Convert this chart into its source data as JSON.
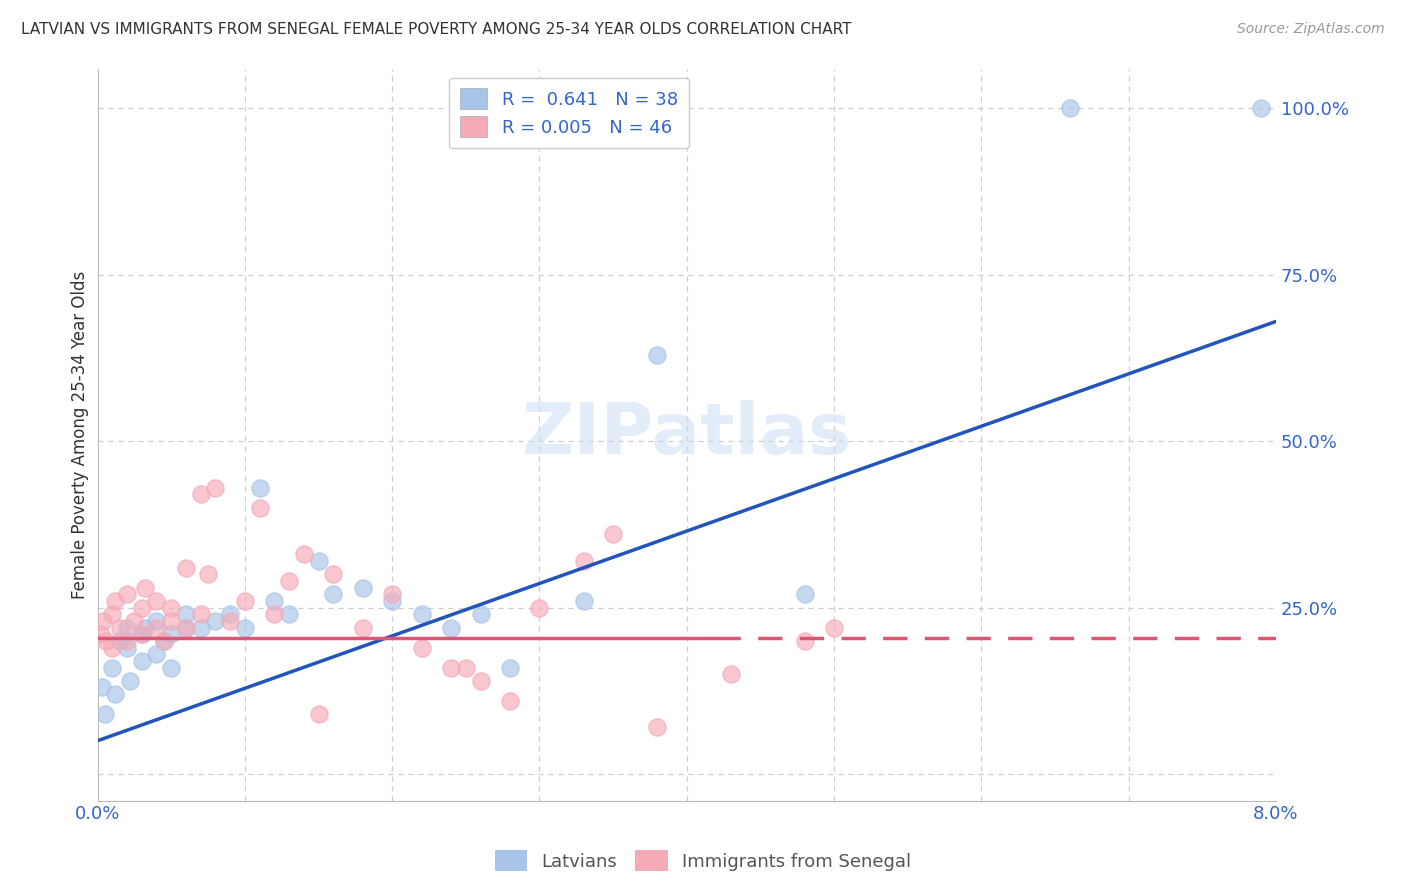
{
  "title": "LATVIAN VS IMMIGRANTS FROM SENEGAL FEMALE POVERTY AMONG 25-34 YEAR OLDS CORRELATION CHART",
  "source": "Source: ZipAtlas.com",
  "ylabel": "Female Poverty Among 25-34 Year Olds",
  "latvian_R": "0.641",
  "latvian_N": "38",
  "senegal_R": "0.005",
  "senegal_N": "46",
  "latvian_color": "#a8c4e8",
  "senegal_color": "#f5aab8",
  "latvian_line_color": "#2255bb",
  "senegal_line_color": "#dd5577",
  "legend_label_latvians": "Latvians",
  "legend_label_senegal": "Immigrants from Senegal",
  "latvian_line_x0": 0.0,
  "latvian_line_y0": 0.05,
  "latvian_line_x1": 0.08,
  "latvian_line_y1": 0.68,
  "senegal_line_x0": 0.0,
  "senegal_line_y0": 0.205,
  "senegal_line_x1": 0.08,
  "senegal_line_y1": 0.205,
  "watermark": "ZIPatlas",
  "background_color": "#ffffff",
  "grid_color": "#cccccc",
  "xlim": [
    0.0,
    0.08
  ],
  "ylim": [
    -0.04,
    1.06
  ],
  "latvian_scatter_x": [
    0.0003,
    0.0005,
    0.001,
    0.0012,
    0.0015,
    0.002,
    0.002,
    0.0022,
    0.003,
    0.003,
    0.0032,
    0.004,
    0.004,
    0.0045,
    0.005,
    0.005,
    0.006,
    0.006,
    0.007,
    0.008,
    0.009,
    0.01,
    0.011,
    0.012,
    0.013,
    0.015,
    0.016,
    0.018,
    0.02,
    0.022,
    0.024,
    0.026,
    0.028,
    0.033,
    0.038,
    0.048,
    0.066,
    0.079
  ],
  "latvian_scatter_y": [
    0.13,
    0.09,
    0.16,
    0.12,
    0.2,
    0.22,
    0.19,
    0.14,
    0.21,
    0.17,
    0.22,
    0.18,
    0.23,
    0.2,
    0.21,
    0.16,
    0.22,
    0.24,
    0.22,
    0.23,
    0.24,
    0.22,
    0.43,
    0.26,
    0.24,
    0.32,
    0.27,
    0.28,
    0.26,
    0.24,
    0.22,
    0.24,
    0.16,
    0.26,
    0.63,
    0.27,
    1.0,
    1.0
  ],
  "senegal_scatter_x": [
    0.0002,
    0.0004,
    0.0006,
    0.001,
    0.001,
    0.0012,
    0.0015,
    0.002,
    0.002,
    0.0025,
    0.003,
    0.003,
    0.0032,
    0.004,
    0.004,
    0.0045,
    0.005,
    0.005,
    0.006,
    0.006,
    0.007,
    0.007,
    0.0075,
    0.008,
    0.009,
    0.01,
    0.011,
    0.012,
    0.013,
    0.014,
    0.016,
    0.018,
    0.02,
    0.022,
    0.024,
    0.026,
    0.028,
    0.03,
    0.033,
    0.038,
    0.043,
    0.048,
    0.05,
    0.035,
    0.025,
    0.015
  ],
  "senegal_scatter_y": [
    0.21,
    0.23,
    0.2,
    0.24,
    0.19,
    0.26,
    0.22,
    0.2,
    0.27,
    0.23,
    0.25,
    0.21,
    0.28,
    0.22,
    0.26,
    0.2,
    0.25,
    0.23,
    0.31,
    0.22,
    0.42,
    0.24,
    0.3,
    0.43,
    0.23,
    0.26,
    0.4,
    0.24,
    0.29,
    0.33,
    0.3,
    0.22,
    0.27,
    0.19,
    0.16,
    0.14,
    0.11,
    0.25,
    0.32,
    0.07,
    0.15,
    0.2,
    0.22,
    0.36,
    0.16,
    0.09
  ]
}
